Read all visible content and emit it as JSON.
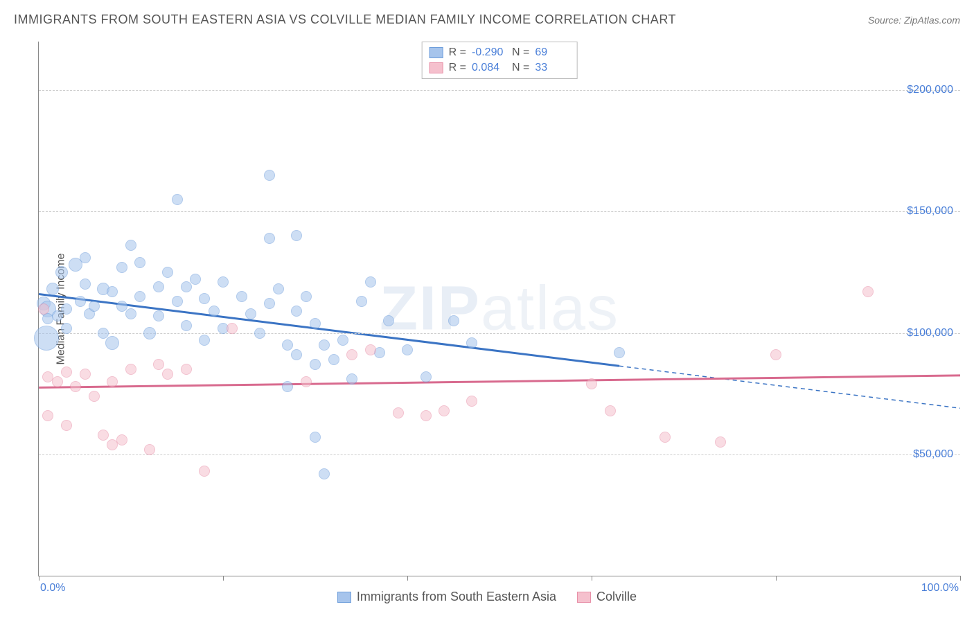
{
  "title": "IMMIGRANTS FROM SOUTH EASTERN ASIA VS COLVILLE MEDIAN FAMILY INCOME CORRELATION CHART",
  "source_label": "Source: ZipAtlas.com",
  "y_axis_label": "Median Family Income",
  "watermark": {
    "bold": "ZIP",
    "light": "atlas"
  },
  "chart": {
    "type": "scatter-with-regression",
    "background_color": "#ffffff",
    "grid_color": "#cccccc",
    "axis_color": "#888888",
    "xlim": [
      0,
      100
    ],
    "ylim": [
      0,
      220000
    ],
    "x_ticks": [
      0,
      20,
      40,
      60,
      80,
      100
    ],
    "x_tick_labels_shown": {
      "0": "0.0%",
      "100": "100.0%"
    },
    "y_gridlines": [
      50000,
      100000,
      150000,
      200000
    ],
    "y_tick_labels": [
      "$50,000",
      "$100,000",
      "$150,000",
      "$200,000"
    ],
    "y_tick_color": "#4a7fd8",
    "x_tick_color": "#4a7fd8",
    "label_fontsize": 16,
    "title_fontsize": 18,
    "title_color": "#555555"
  },
  "series": [
    {
      "name": "Immigrants from South Eastern Asia",
      "fill_color": "#a6c4ec",
      "stroke_color": "#6e9edb",
      "fill_opacity": 0.55,
      "line_color": "#3b74c4",
      "line_width": 3,
      "R": "-0.290",
      "N": "69",
      "trend": {
        "x1": 0,
        "y1": 116000,
        "x2": 100,
        "y2": 69000,
        "solid_until_x": 63
      },
      "points": [
        {
          "x": 0.5,
          "y": 112000,
          "r": 10
        },
        {
          "x": 0.8,
          "y": 98000,
          "r": 18
        },
        {
          "x": 1,
          "y": 110000,
          "r": 12
        },
        {
          "x": 1,
          "y": 106000,
          "r": 8
        },
        {
          "x": 1.5,
          "y": 118000,
          "r": 9
        },
        {
          "x": 2,
          "y": 107000,
          "r": 8
        },
        {
          "x": 2.5,
          "y": 125000,
          "r": 9
        },
        {
          "x": 3,
          "y": 102000,
          "r": 8
        },
        {
          "x": 3,
          "y": 110000,
          "r": 8
        },
        {
          "x": 4,
          "y": 128000,
          "r": 10
        },
        {
          "x": 4.5,
          "y": 113000,
          "r": 8
        },
        {
          "x": 5,
          "y": 120000,
          "r": 8
        },
        {
          "x": 5,
          "y": 131000,
          "r": 8
        },
        {
          "x": 5.5,
          "y": 108000,
          "r": 8
        },
        {
          "x": 6,
          "y": 111000,
          "r": 8
        },
        {
          "x": 7,
          "y": 118000,
          "r": 9
        },
        {
          "x": 7,
          "y": 100000,
          "r": 8
        },
        {
          "x": 8,
          "y": 117000,
          "r": 8
        },
        {
          "x": 8,
          "y": 96000,
          "r": 10
        },
        {
          "x": 9,
          "y": 127000,
          "r": 8
        },
        {
          "x": 9,
          "y": 111000,
          "r": 8
        },
        {
          "x": 10,
          "y": 136000,
          "r": 8
        },
        {
          "x": 10,
          "y": 108000,
          "r": 8
        },
        {
          "x": 11,
          "y": 115000,
          "r": 8
        },
        {
          "x": 11,
          "y": 129000,
          "r": 8
        },
        {
          "x": 12,
          "y": 100000,
          "r": 9
        },
        {
          "x": 13,
          "y": 119000,
          "r": 8
        },
        {
          "x": 13,
          "y": 107000,
          "r": 8
        },
        {
          "x": 14,
          "y": 125000,
          "r": 8
        },
        {
          "x": 15,
          "y": 113000,
          "r": 8
        },
        {
          "x": 15,
          "y": 155000,
          "r": 8
        },
        {
          "x": 16,
          "y": 119000,
          "r": 8
        },
        {
          "x": 16,
          "y": 103000,
          "r": 8
        },
        {
          "x": 17,
          "y": 122000,
          "r": 8
        },
        {
          "x": 18,
          "y": 114000,
          "r": 8
        },
        {
          "x": 18,
          "y": 97000,
          "r": 8
        },
        {
          "x": 19,
          "y": 109000,
          "r": 8
        },
        {
          "x": 20,
          "y": 121000,
          "r": 8
        },
        {
          "x": 20,
          "y": 102000,
          "r": 8
        },
        {
          "x": 22,
          "y": 115000,
          "r": 8
        },
        {
          "x": 23,
          "y": 108000,
          "r": 8
        },
        {
          "x": 24,
          "y": 100000,
          "r": 8
        },
        {
          "x": 25,
          "y": 165000,
          "r": 8
        },
        {
          "x": 25,
          "y": 139000,
          "r": 8
        },
        {
          "x": 25,
          "y": 112000,
          "r": 8
        },
        {
          "x": 26,
          "y": 118000,
          "r": 8
        },
        {
          "x": 27,
          "y": 95000,
          "r": 8
        },
        {
          "x": 27,
          "y": 78000,
          "r": 8
        },
        {
          "x": 28,
          "y": 109000,
          "r": 8
        },
        {
          "x": 28,
          "y": 91000,
          "r": 8
        },
        {
          "x": 28,
          "y": 140000,
          "r": 8
        },
        {
          "x": 29,
          "y": 115000,
          "r": 8
        },
        {
          "x": 30,
          "y": 57000,
          "r": 8
        },
        {
          "x": 30,
          "y": 87000,
          "r": 8
        },
        {
          "x": 30,
          "y": 104000,
          "r": 8
        },
        {
          "x": 31,
          "y": 95000,
          "r": 8
        },
        {
          "x": 31,
          "y": 42000,
          "r": 8
        },
        {
          "x": 32,
          "y": 89000,
          "r": 8
        },
        {
          "x": 33,
          "y": 97000,
          "r": 8
        },
        {
          "x": 34,
          "y": 81000,
          "r": 8
        },
        {
          "x": 35,
          "y": 113000,
          "r": 8
        },
        {
          "x": 36,
          "y": 121000,
          "r": 8
        },
        {
          "x": 37,
          "y": 92000,
          "r": 8
        },
        {
          "x": 38,
          "y": 105000,
          "r": 8
        },
        {
          "x": 40,
          "y": 93000,
          "r": 8
        },
        {
          "x": 42,
          "y": 82000,
          "r": 8
        },
        {
          "x": 45,
          "y": 105000,
          "r": 8
        },
        {
          "x": 47,
          "y": 96000,
          "r": 8
        },
        {
          "x": 63,
          "y": 92000,
          "r": 8
        }
      ]
    },
    {
      "name": "Colville",
      "fill_color": "#f5c0cd",
      "stroke_color": "#e890a8",
      "fill_opacity": 0.55,
      "line_color": "#d86a8e",
      "line_width": 3,
      "R": "0.084",
      "N": "33",
      "trend": {
        "x1": 0,
        "y1": 77500,
        "x2": 100,
        "y2": 82500,
        "solid_until_x": 100
      },
      "points": [
        {
          "x": 0.5,
          "y": 110000,
          "r": 8
        },
        {
          "x": 1,
          "y": 82000,
          "r": 8
        },
        {
          "x": 1,
          "y": 66000,
          "r": 8
        },
        {
          "x": 2,
          "y": 80000,
          "r": 8
        },
        {
          "x": 3,
          "y": 84000,
          "r": 8
        },
        {
          "x": 3,
          "y": 62000,
          "r": 8
        },
        {
          "x": 4,
          "y": 78000,
          "r": 8
        },
        {
          "x": 5,
          "y": 83000,
          "r": 8
        },
        {
          "x": 6,
          "y": 74000,
          "r": 8
        },
        {
          "x": 7,
          "y": 58000,
          "r": 8
        },
        {
          "x": 8,
          "y": 80000,
          "r": 8
        },
        {
          "x": 8,
          "y": 54000,
          "r": 8
        },
        {
          "x": 9,
          "y": 56000,
          "r": 8
        },
        {
          "x": 10,
          "y": 85000,
          "r": 8
        },
        {
          "x": 12,
          "y": 52000,
          "r": 8
        },
        {
          "x": 13,
          "y": 87000,
          "r": 8
        },
        {
          "x": 14,
          "y": 83000,
          "r": 8
        },
        {
          "x": 16,
          "y": 85000,
          "r": 8
        },
        {
          "x": 18,
          "y": 43000,
          "r": 8
        },
        {
          "x": 21,
          "y": 102000,
          "r": 8
        },
        {
          "x": 29,
          "y": 80000,
          "r": 8
        },
        {
          "x": 34,
          "y": 91000,
          "r": 8
        },
        {
          "x": 36,
          "y": 93000,
          "r": 8
        },
        {
          "x": 39,
          "y": 67000,
          "r": 8
        },
        {
          "x": 42,
          "y": 66000,
          "r": 8
        },
        {
          "x": 44,
          "y": 68000,
          "r": 8
        },
        {
          "x": 47,
          "y": 72000,
          "r": 8
        },
        {
          "x": 60,
          "y": 79000,
          "r": 8
        },
        {
          "x": 62,
          "y": 68000,
          "r": 8
        },
        {
          "x": 68,
          "y": 57000,
          "r": 8
        },
        {
          "x": 74,
          "y": 55000,
          "r": 8
        },
        {
          "x": 80,
          "y": 91000,
          "r": 8
        },
        {
          "x": 90,
          "y": 117000,
          "r": 8
        }
      ]
    }
  ],
  "legend": {
    "r_label": "R =",
    "n_label": "N ="
  }
}
